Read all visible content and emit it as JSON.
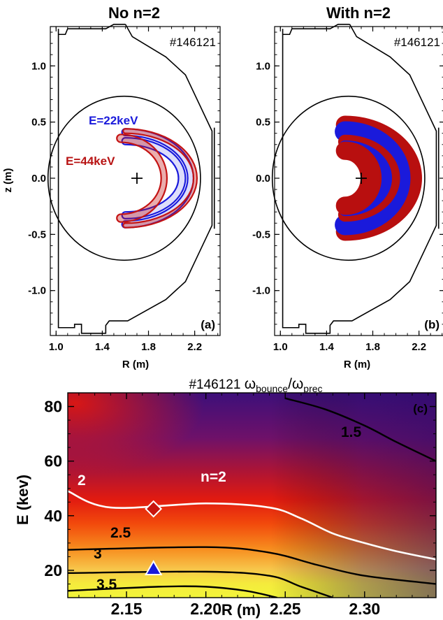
{
  "panels": [
    {
      "title": "No n=2",
      "shot": "#146121",
      "label": "(a)",
      "ylabel": "z (m)",
      "xlabel": "R (m)",
      "xticks": [
        "1.0",
        "1.4",
        "1.8",
        "2.2"
      ],
      "yticks": [
        "1.0",
        "0.5",
        "0.0",
        "-0.5",
        "-1.0"
      ],
      "annotations": [
        "E=22keV",
        "E=44keV"
      ],
      "colors": {
        "e22": "#1a1adb",
        "e44": "#c41414"
      }
    },
    {
      "title": "With n=2",
      "shot": "#146121",
      "label": "(b)",
      "xlabel": "R (m)",
      "xticks": [
        "1.0",
        "1.4",
        "1.8",
        "2.2"
      ],
      "yticks": [
        "1.0",
        "0.5",
        "0.0",
        "-0.5",
        "-1.0"
      ],
      "colors": {
        "e22": "#1a1adb",
        "e44": "#b80f0f"
      }
    }
  ],
  "bottom": {
    "title_prefix": "#146121 ",
    "title_main": "ω",
    "title_sub1": "bounce",
    "title_sep": "/ω",
    "title_sub2": "prec",
    "label": "(c)",
    "xlabel": "R (m)",
    "ylabel": "E (kev)",
    "xticks": [
      "2.15",
      "2.20",
      "2.25",
      "2.30"
    ],
    "yticks": [
      "20",
      "40",
      "60",
      "80"
    ],
    "contour_labels": [
      "1.5",
      "2",
      "n=2",
      "2.5",
      "3",
      "3.5"
    ],
    "markers": [
      {
        "shape": "diamond",
        "R": 2.167,
        "E": 42.5
      },
      {
        "shape": "triangle",
        "R": 2.167,
        "E": 20.5
      }
    ]
  },
  "chart_data": [
    {
      "type": "line",
      "title": "No n=2",
      "xlabel": "R (m)",
      "ylabel": "z (m)",
      "xlim": [
        0.95,
        2.42
      ],
      "ylim": [
        -1.4,
        1.35
      ],
      "series": [
        {
          "name": "E=22keV",
          "color": "#1a1adb"
        },
        {
          "name": "E=44keV",
          "color": "#c41414"
        }
      ]
    },
    {
      "type": "line",
      "title": "With n=2",
      "xlabel": "R (m)",
      "xlim": [
        0.95,
        2.42
      ],
      "ylim": [
        -1.4,
        1.35
      ]
    },
    {
      "type": "heatmap",
      "xlabel": "R (m)",
      "ylabel": "E (kev)",
      "xlim": [
        2.113,
        2.345
      ],
      "ylim": [
        10,
        85
      ],
      "contours": [
        {
          "level": "1.5",
          "R": [
            2.25,
            2.275,
            2.3,
            2.32,
            2.345
          ],
          "E": [
            83,
            79,
            73,
            67,
            60
          ]
        },
        {
          "level": "2",
          "R": [
            2.113,
            2.14,
            2.2,
            2.24,
            2.26,
            2.28,
            2.3,
            2.32,
            2.345
          ],
          "E": [
            49,
            43,
            44.5,
            43,
            39,
            33.5,
            30,
            27,
            24
          ]
        },
        {
          "level": "2.5",
          "R": [
            2.113,
            2.2,
            2.24,
            2.27,
            2.3,
            2.345
          ],
          "E": [
            27.5,
            28.5,
            26.5,
            22,
            18,
            15
          ]
        },
        {
          "level": "3",
          "R": [
            2.113,
            2.2,
            2.24,
            2.26,
            2.28
          ],
          "E": [
            19,
            19.5,
            18,
            14,
            10
          ]
        },
        {
          "level": "3.5",
          "R": [
            2.113,
            2.17,
            2.2,
            2.225,
            2.245
          ],
          "E": [
            12.5,
            14,
            14,
            12.5,
            10
          ]
        }
      ]
    }
  ]
}
